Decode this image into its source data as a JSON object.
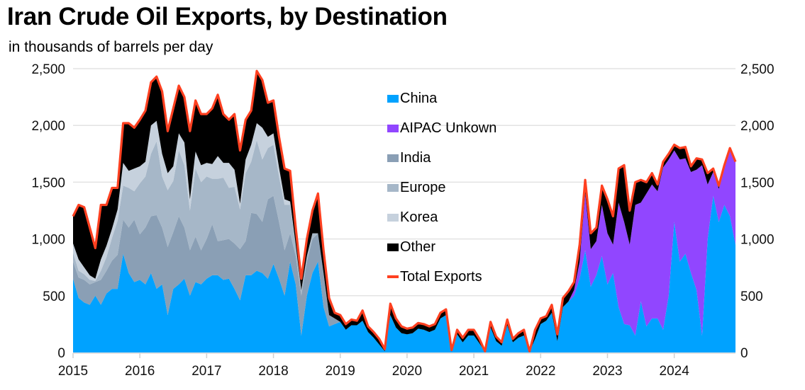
{
  "title": "Iran Crude Oil Exports, by Destination",
  "subtitle": "in thousands of barrels per day",
  "chart_data": {
    "type": "area",
    "stacked": true,
    "title": "Iran Crude Oil Exports, by Destination",
    "subtitle": "in thousands of barrels per day",
    "x_start": "2015-01",
    "x_frequency": "monthly",
    "x_ticks": [
      "2015",
      "2016",
      "2017",
      "2018",
      "2019",
      "2020",
      "2021",
      "2022",
      "2023",
      "2024"
    ],
    "y_ticks": [
      "0",
      "500",
      "1,000",
      "1,500",
      "2,000",
      "2,500"
    ],
    "ylim": [
      0,
      2500
    ],
    "grid": true,
    "legend_position": "center",
    "series": [
      {
        "name": "China",
        "color": "#00a2ff",
        "values": [
          650,
          480,
          440,
          420,
          500,
          420,
          520,
          560,
          560,
          870,
          700,
          620,
          640,
          600,
          700,
          560,
          600,
          330,
          560,
          600,
          650,
          500,
          620,
          600,
          650,
          680,
          680,
          640,
          650,
          560,
          460,
          680,
          680,
          720,
          700,
          650,
          780,
          650,
          500,
          800,
          600,
          150,
          500,
          700,
          800,
          400,
          230,
          250,
          270,
          200,
          240,
          240,
          280,
          180,
          130,
          70,
          10,
          330,
          220,
          170,
          160,
          170,
          210,
          200,
          180,
          200,
          300,
          330,
          10,
          160,
          90,
          150,
          150,
          80,
          5,
          220,
          100,
          60,
          240,
          90,
          130,
          150,
          5,
          120,
          250,
          280,
          350,
          100,
          400,
          450,
          500,
          650,
          900,
          580,
          680,
          850,
          600,
          700,
          400,
          250,
          240,
          150,
          450,
          230,
          300,
          300,
          200,
          500,
          1150,
          800,
          870,
          700,
          550,
          150,
          1000,
          1380,
          1150,
          1300,
          1200,
          950
        ]
      },
      {
        "name": "AIPAC Unkown",
        "color": "#9146ff",
        "values": [
          0,
          0,
          0,
          0,
          0,
          0,
          0,
          0,
          0,
          0,
          0,
          0,
          0,
          0,
          0,
          0,
          0,
          0,
          0,
          0,
          0,
          0,
          0,
          0,
          0,
          0,
          0,
          0,
          0,
          0,
          0,
          0,
          0,
          0,
          0,
          0,
          0,
          0,
          0,
          0,
          0,
          0,
          0,
          0,
          0,
          0,
          0,
          0,
          0,
          0,
          0,
          0,
          0,
          0,
          0,
          0,
          0,
          0,
          0,
          0,
          0,
          0,
          0,
          0,
          0,
          0,
          0,
          0,
          0,
          0,
          0,
          0,
          0,
          0,
          0,
          0,
          0,
          0,
          0,
          0,
          0,
          0,
          0,
          0,
          0,
          0,
          0,
          0,
          0,
          0,
          50,
          150,
          500,
          330,
          300,
          450,
          450,
          250,
          920,
          900,
          710,
          1150,
          870,
          1170,
          1180,
          1120,
          1430,
          1200,
          630,
          900,
          840,
          890,
          1060,
          1500,
          480,
          210,
          290,
          350,
          600,
          730
        ]
      },
      {
        "name": "India",
        "color": "#8a9fb5",
        "values": [
          150,
          180,
          200,
          180,
          120,
          220,
          200,
          250,
          300,
          300,
          400,
          550,
          400,
          500,
          500,
          650,
          500,
          600,
          500,
          600,
          450,
          400,
          400,
          300,
          350,
          450,
          300,
          350,
          350,
          400,
          450,
          300,
          550,
          500,
          450,
          700,
          600,
          500,
          400,
          250,
          250,
          350,
          300,
          300,
          250,
          300,
          100,
          50,
          0,
          0,
          0,
          0,
          0,
          0,
          0,
          0,
          0,
          0,
          0,
          0,
          0,
          0,
          0,
          0,
          0,
          0,
          0,
          0,
          0,
          0,
          0,
          0,
          0,
          0,
          0,
          0,
          0,
          0,
          0,
          0,
          0,
          0,
          0,
          0,
          0,
          0,
          0,
          0,
          0,
          0,
          0,
          0,
          0,
          0,
          0,
          0,
          0,
          0,
          0,
          0,
          0,
          0,
          0,
          0,
          0,
          0,
          0,
          0,
          0,
          0,
          0,
          0,
          0,
          0,
          0,
          0,
          0,
          0,
          0,
          0
        ]
      },
      {
        "name": "Europe",
        "color": "#a6b7c8",
        "values": [
          80,
          60,
          50,
          40,
          10,
          80,
          120,
          200,
          300,
          300,
          350,
          250,
          450,
          450,
          550,
          650,
          450,
          500,
          450,
          580,
          550,
          350,
          600,
          600,
          550,
          400,
          550,
          550,
          450,
          500,
          350,
          600,
          450,
          650,
          550,
          450,
          450,
          400,
          400,
          250,
          100,
          50,
          50,
          50,
          0,
          0,
          0,
          0,
          0,
          0,
          0,
          0,
          0,
          0,
          0,
          0,
          0,
          0,
          0,
          0,
          0,
          0,
          0,
          0,
          0,
          0,
          0,
          0,
          0,
          0,
          0,
          0,
          0,
          0,
          0,
          0,
          0,
          0,
          0,
          0,
          0,
          0,
          0,
          0,
          0,
          0,
          0,
          0,
          0,
          0,
          0,
          0,
          0,
          0,
          0,
          0,
          0,
          0,
          0,
          0,
          0,
          0,
          0,
          0,
          0,
          0,
          0,
          0,
          0,
          0,
          0,
          0,
          0,
          0,
          0,
          0,
          0,
          0,
          0,
          0
        ]
      },
      {
        "name": "Korea",
        "color": "#c6d1dd",
        "values": [
          80,
          100,
          60,
          40,
          20,
          100,
          100,
          80,
          100,
          200,
          150,
          200,
          150,
          130,
          250,
          180,
          200,
          150,
          130,
          150,
          200,
          100,
          150,
          150,
          120,
          130,
          200,
          130,
          220,
          150,
          50,
          120,
          150,
          150,
          280,
          100,
          100,
          80,
          50,
          30,
          0,
          0,
          0,
          0,
          0,
          0,
          0,
          0,
          0,
          0,
          0,
          0,
          0,
          0,
          0,
          0,
          0,
          0,
          0,
          0,
          0,
          0,
          0,
          0,
          0,
          0,
          0,
          0,
          0,
          0,
          0,
          0,
          0,
          0,
          0,
          0,
          0,
          0,
          0,
          0,
          0,
          0,
          0,
          0,
          0,
          0,
          0,
          0,
          0,
          0,
          0,
          0,
          0,
          0,
          0,
          0,
          0,
          0,
          0,
          0,
          0,
          0,
          0,
          0,
          0,
          0,
          0,
          0,
          0,
          0,
          0,
          0,
          0,
          0,
          0,
          0,
          0,
          0,
          0,
          0
        ]
      },
      {
        "name": "Other",
        "color": "#000000",
        "values": [
          240,
          480,
          530,
          420,
          270,
          480,
          360,
          360,
          190,
          350,
          420,
          360,
          410,
          450,
          380,
          390,
          550,
          370,
          510,
          420,
          400,
          600,
          450,
          450,
          430,
          490,
          540,
          430,
          380,
          490,
          470,
          350,
          300,
          460,
          420,
          300,
          290,
          270,
          270,
          270,
          150,
          100,
          150,
          200,
          350,
          200,
          150,
          50,
          60,
          50,
          50,
          40,
          90,
          50,
          50,
          50,
          20,
          100,
          80,
          60,
          50,
          50,
          50,
          50,
          50,
          50,
          50,
          50,
          10,
          40,
          40,
          50,
          50,
          40,
          5,
          50,
          40,
          30,
          50,
          30,
          40,
          50,
          5,
          80,
          50,
          40,
          70,
          60,
          80,
          90,
          70,
          150,
          120,
          140,
          120,
          170,
          300,
          250,
          300,
          500,
          300,
          200,
          200,
          100,
          100,
          60,
          50,
          50,
          50,
          100,
          100,
          50,
          100,
          50,
          100,
          30,
          30,
          0,
          0,
          0
        ]
      }
    ],
    "total": {
      "name": "Total Exports",
      "color": "#ff4020",
      "values": [
        1200,
        1300,
        1280,
        1100,
        920,
        1300,
        1300,
        1450,
        1450,
        2020,
        2020,
        1980,
        2050,
        2130,
        2380,
        2430,
        2300,
        1950,
        2150,
        2350,
        2250,
        1950,
        2220,
        2100,
        2100,
        2150,
        2270,
        2100,
        2050,
        2100,
        1780,
        2050,
        2130,
        2480,
        2400,
        2200,
        2220,
        1900,
        1620,
        1600,
        1100,
        650,
        1000,
        1250,
        1400,
        900,
        480,
        350,
        330,
        250,
        290,
        280,
        370,
        230,
        180,
        120,
        30,
        430,
        300,
        230,
        210,
        220,
        260,
        250,
        230,
        250,
        350,
        380,
        20,
        200,
        130,
        200,
        200,
        120,
        10,
        270,
        140,
        90,
        290,
        120,
        170,
        200,
        10,
        200,
        300,
        320,
        420,
        160,
        480,
        540,
        620,
        950,
        1520,
        1050,
        1100,
        1470,
        1350,
        1200,
        1620,
        1650,
        1250,
        1500,
        1520,
        1500,
        1580,
        1480,
        1680,
        1750,
        1830,
        1800,
        1810,
        1640,
        1710,
        1700,
        1580,
        1620,
        1470,
        1650,
        1800,
        1680
      ]
    }
  }
}
